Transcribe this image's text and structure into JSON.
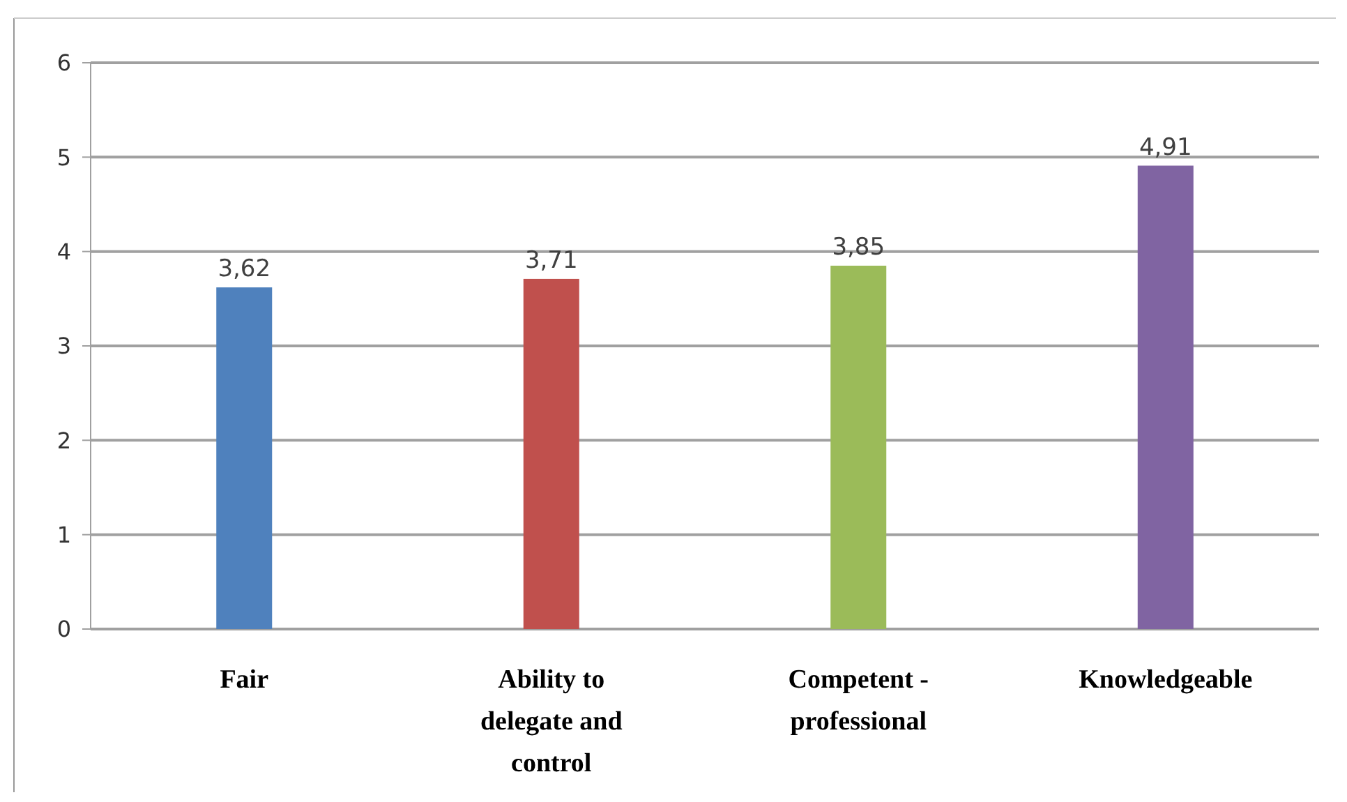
{
  "chart_data": {
    "type": "bar",
    "categories": [
      "Fair",
      "Ability to delegate and control",
      "Competent - professional",
      "Knowledgeable"
    ],
    "values": [
      3.62,
      3.71,
      3.85,
      4.91
    ],
    "colors": [
      "#4f81bd",
      "#c0504d",
      "#9bbb59",
      "#8064a2"
    ],
    "value_labels": [
      "3,62",
      "3,71",
      "3,85",
      "4,91"
    ],
    "ylim": [
      0,
      6
    ],
    "yticks": [
      0,
      1,
      2,
      3,
      4,
      5,
      6
    ],
    "grid": "y"
  }
}
